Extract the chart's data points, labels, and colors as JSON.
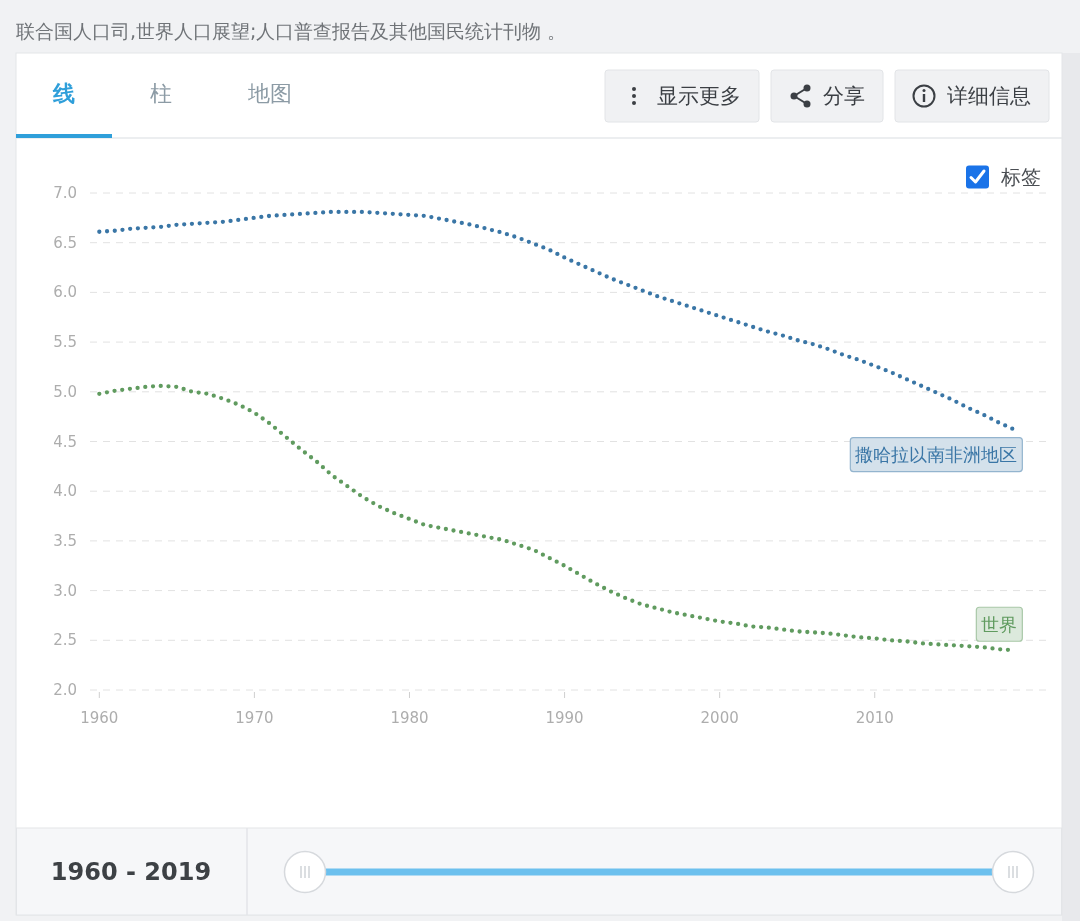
{
  "chart_data": {
    "type": "line",
    "annotations": [
      "联合国人口司,世界人口展望;人口普查报告及其他国民统计刊物 。",
      "线",
      "柱",
      "地图",
      "显示更多",
      "分享",
      "详细信息",
      "标签",
      "1960 - 2019"
    ],
    "x": [
      1960,
      1961,
      1962,
      1963,
      1964,
      1965,
      1966,
      1967,
      1968,
      1969,
      1970,
      1971,
      1972,
      1973,
      1974,
      1975,
      1976,
      1977,
      1978,
      1979,
      1980,
      1981,
      1982,
      1983,
      1984,
      1985,
      1986,
      1987,
      1988,
      1989,
      1990,
      1991,
      1992,
      1993,
      1994,
      1995,
      1996,
      1997,
      1998,
      1999,
      2000,
      2001,
      2002,
      2003,
      2004,
      2005,
      2006,
      2007,
      2008,
      2009,
      2010,
      2011,
      2012,
      2013,
      2014,
      2015,
      2016,
      2017,
      2018,
      2019
    ],
    "xlim": [
      1959.4,
      2021.3
    ],
    "xticks": [
      1960,
      1970,
      1980,
      1990,
      2000,
      2010
    ],
    "ylim": [
      2,
      7
    ],
    "yticks": [
      {
        "value": 2,
        "label": "2.0"
      },
      {
        "value": 2.5,
        "label": "2.5"
      },
      {
        "value": 3,
        "label": "3.0"
      },
      {
        "value": 3.5,
        "label": "3.5"
      },
      {
        "value": 4,
        "label": "4.0"
      },
      {
        "value": 4.5,
        "label": "4.5"
      },
      {
        "value": 5,
        "label": "5.0"
      },
      {
        "value": 5.5,
        "label": "5.5"
      },
      {
        "value": 6,
        "label": "6.0"
      },
      {
        "value": 6.5,
        "label": "6.5"
      },
      {
        "value": 7,
        "label": "7.0"
      }
    ],
    "grid": "y",
    "legend": false,
    "line_style": "dotted",
    "series": [
      {
        "name": "撒哈拉以南非洲地区",
        "color": "#3a76a6",
        "values": [
          6.61,
          6.62,
          6.64,
          6.65,
          6.66,
          6.68,
          6.69,
          6.7,
          6.71,
          6.73,
          6.75,
          6.77,
          6.78,
          6.79,
          6.8,
          6.81,
          6.81,
          6.81,
          6.8,
          6.79,
          6.78,
          6.77,
          6.74,
          6.71,
          6.68,
          6.64,
          6.6,
          6.55,
          6.49,
          6.43,
          6.35,
          6.28,
          6.21,
          6.14,
          6.08,
          6.02,
          5.96,
          5.91,
          5.86,
          5.81,
          5.76,
          5.71,
          5.66,
          5.61,
          5.57,
          5.52,
          5.48,
          5.43,
          5.37,
          5.32,
          5.26,
          5.2,
          5.13,
          5.06,
          4.99,
          4.92,
          4.84,
          4.77,
          4.69,
          4.62
        ]
      },
      {
        "name": "世界",
        "color": "#609b5f",
        "values": [
          4.98,
          5.01,
          5.03,
          5.05,
          5.06,
          5.05,
          5.0,
          4.98,
          4.93,
          4.87,
          4.79,
          4.68,
          4.55,
          4.42,
          4.3,
          4.16,
          4.05,
          3.94,
          3.85,
          3.78,
          3.72,
          3.66,
          3.63,
          3.6,
          3.57,
          3.54,
          3.51,
          3.46,
          3.41,
          3.33,
          3.25,
          3.16,
          3.07,
          2.99,
          2.92,
          2.86,
          2.82,
          2.78,
          2.75,
          2.72,
          2.69,
          2.67,
          2.64,
          2.63,
          2.61,
          2.59,
          2.58,
          2.57,
          2.55,
          2.53,
          2.52,
          2.5,
          2.49,
          2.47,
          2.46,
          2.45,
          2.44,
          2.43,
          2.41,
          2.4
        ]
      }
    ]
  }
}
